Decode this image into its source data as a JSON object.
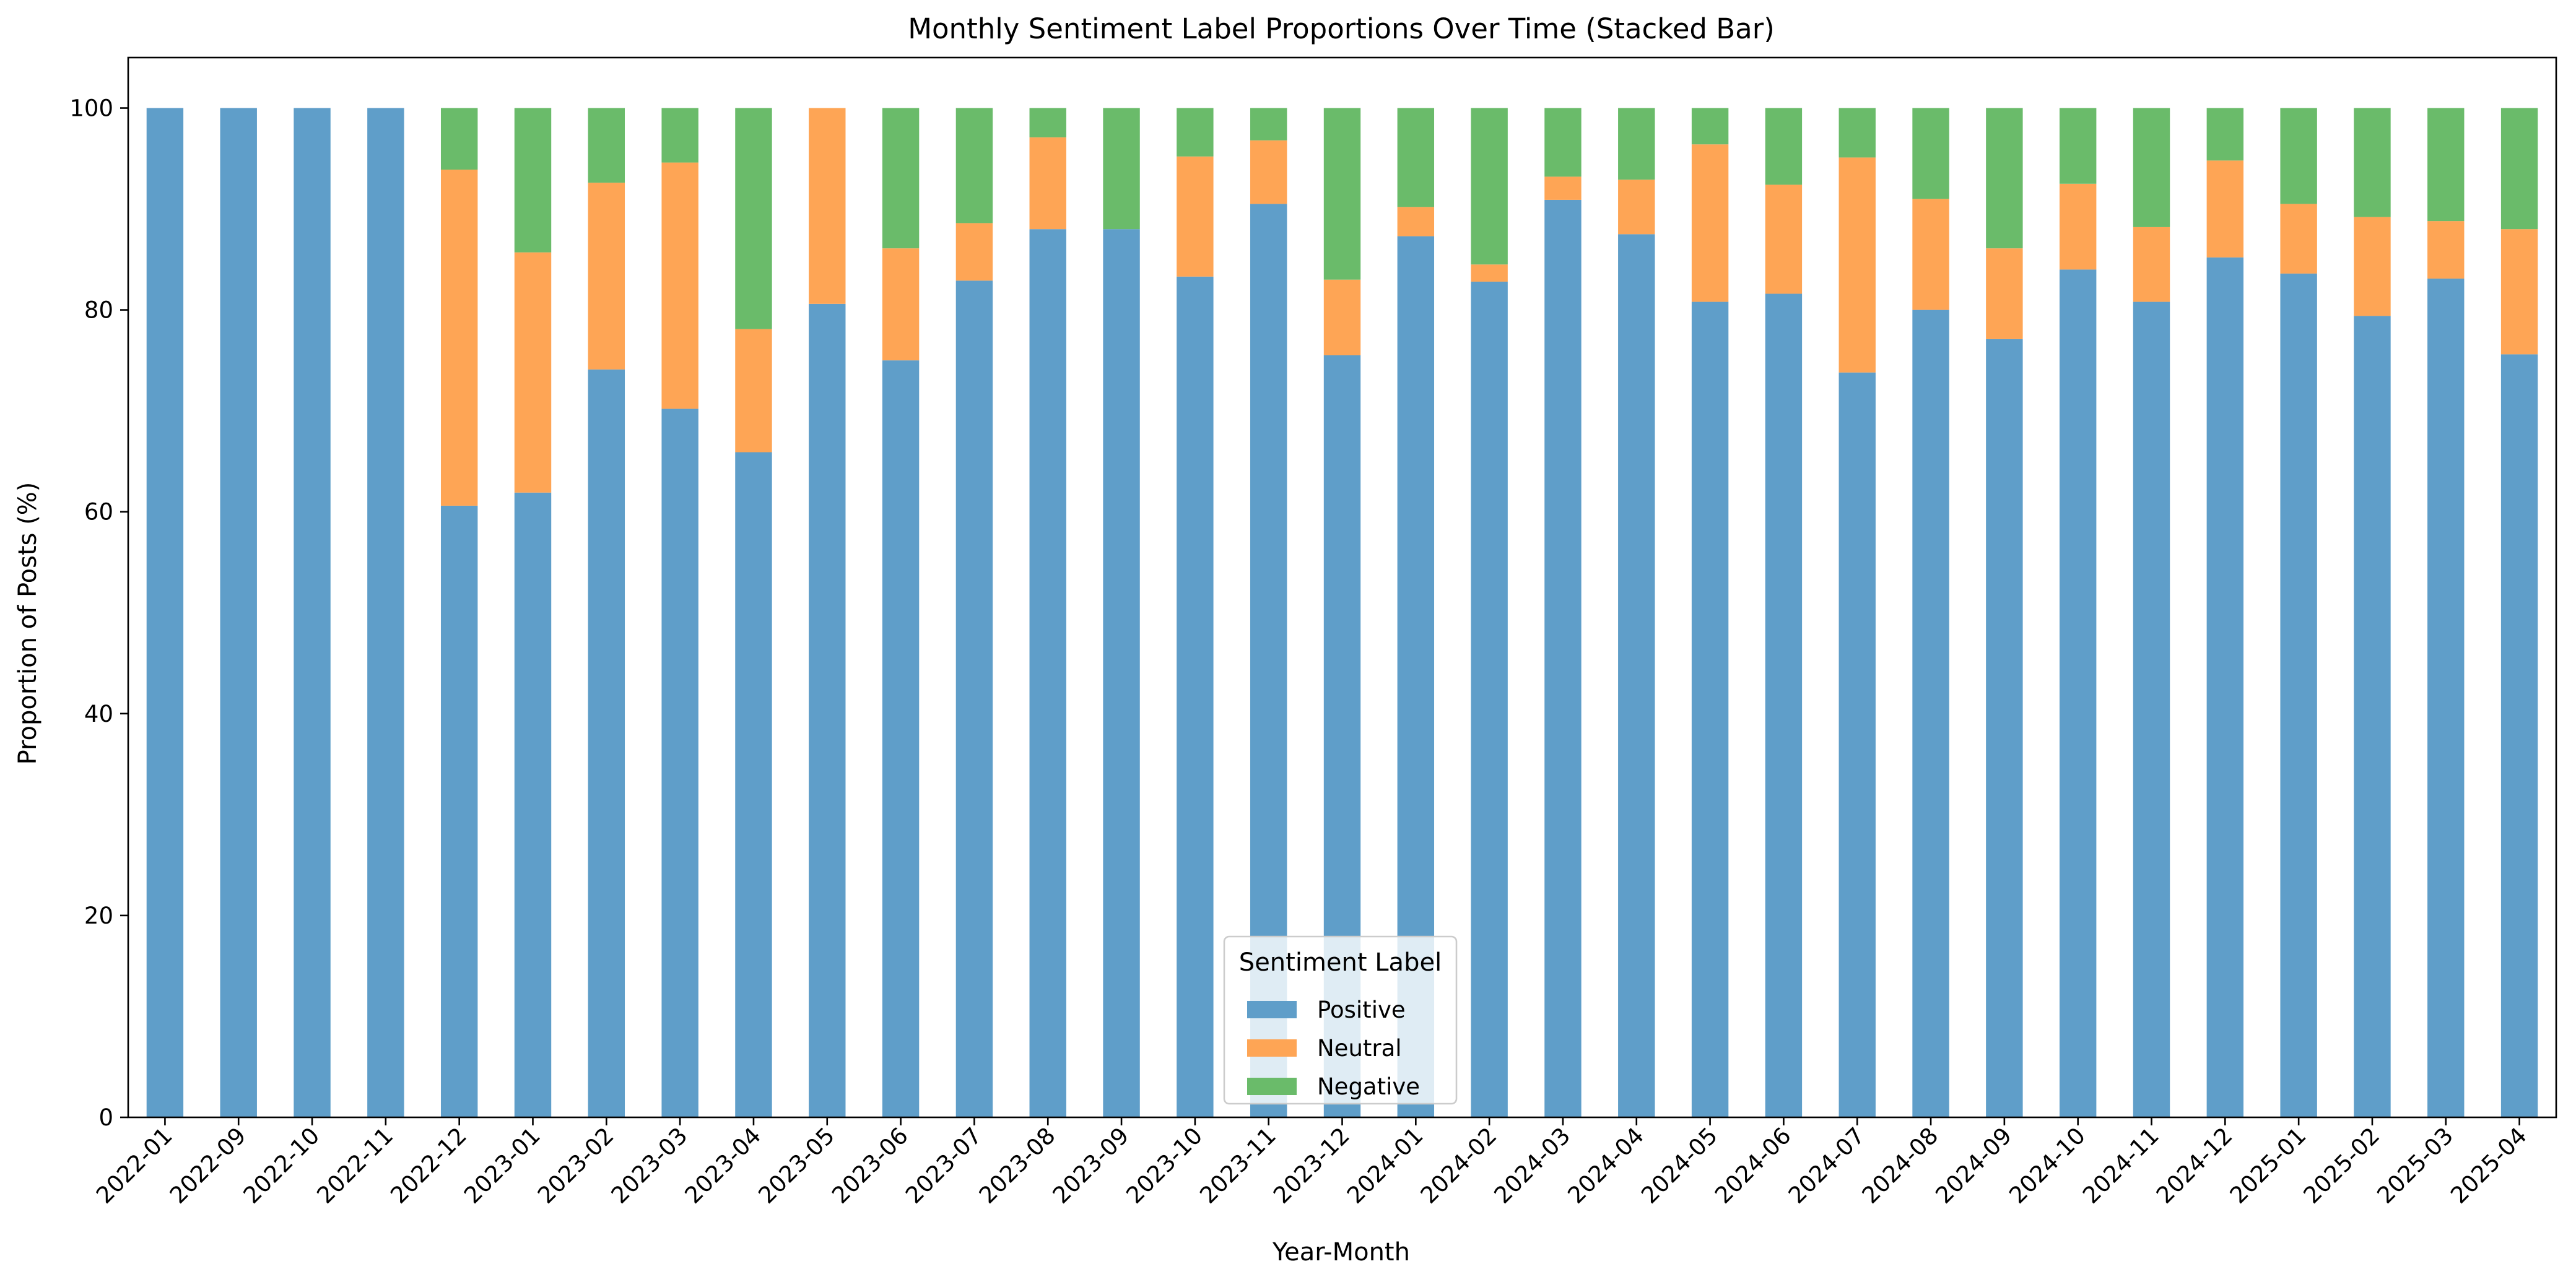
{
  "chart_data": {
    "type": "bar",
    "stacked": true,
    "title": "Monthly Sentiment Label Proportions Over Time (Stacked Bar)",
    "xlabel": "Year-Month",
    "ylabel": "Proportion of Posts (%)",
    "ylim": [
      0,
      105
    ],
    "yticks": [
      "0",
      "20",
      "40",
      "60",
      "80",
      "100"
    ],
    "grid": false,
    "categories": [
      "2022-01",
      "2022-09",
      "2022-10",
      "2022-11",
      "2022-12",
      "2023-01",
      "2023-02",
      "2023-03",
      "2023-04",
      "2023-05",
      "2023-06",
      "2023-07",
      "2023-08",
      "2023-09",
      "2023-10",
      "2023-11",
      "2023-12",
      "2024-01",
      "2024-02",
      "2024-03",
      "2024-04",
      "2024-05",
      "2024-06",
      "2024-07",
      "2024-08",
      "2024-09",
      "2024-10",
      "2024-11",
      "2024-12",
      "2025-01",
      "2025-02",
      "2025-03",
      "2025-04"
    ],
    "legend": {
      "title": "Sentiment Label",
      "placement": "lower-center"
    },
    "series": [
      {
        "name": "Positive",
        "color": "#5f9ec9",
        "values": [
          100,
          100,
          100,
          100,
          60.6,
          61.9,
          74.1,
          70.2,
          65.9,
          80.6,
          75.0,
          82.9,
          88.0,
          88.0,
          83.3,
          90.5,
          75.5,
          87.3,
          82.8,
          90.9,
          87.5,
          80.8,
          81.6,
          73.8,
          80.0,
          77.1,
          84.0,
          80.8,
          85.2,
          83.6,
          79.4,
          83.1,
          75.6
        ]
      },
      {
        "name": "Neutral",
        "color": "#fea555",
        "values": [
          0,
          0,
          0,
          0,
          33.3,
          23.8,
          18.5,
          24.4,
          12.2,
          19.4,
          11.1,
          5.7,
          9.1,
          0,
          11.9,
          6.3,
          7.5,
          2.9,
          1.7,
          2.3,
          5.4,
          15.6,
          10.8,
          21.3,
          11.0,
          9.0,
          8.5,
          7.4,
          9.6,
          6.9,
          9.8,
          5.7,
          12.4
        ]
      },
      {
        "name": "Negative",
        "color": "#6abb6a",
        "values": [
          0,
          0,
          0,
          0,
          6.1,
          14.3,
          7.4,
          5.4,
          21.9,
          0,
          13.9,
          11.4,
          2.9,
          12.0,
          4.8,
          3.2,
          17.0,
          9.8,
          15.5,
          6.8,
          7.1,
          3.6,
          7.6,
          4.9,
          9.0,
          13.9,
          7.5,
          11.8,
          5.2,
          9.5,
          10.8,
          11.2,
          12.0
        ]
      }
    ]
  }
}
